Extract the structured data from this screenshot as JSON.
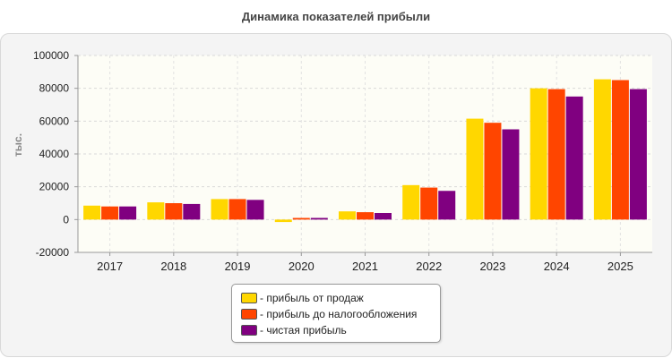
{
  "chart_data": {
    "type": "bar",
    "title": "Динамика показателей прибыли",
    "ylabel": "тыс.",
    "xlabel": "",
    "categories": [
      "2017",
      "2018",
      "2019",
      "2020",
      "2021",
      "2022",
      "2023",
      "2024",
      "2025"
    ],
    "ylim": [
      -20000,
      100000
    ],
    "yticks": [
      100000,
      80000,
      60000,
      40000,
      20000,
      0,
      -20000
    ],
    "grid": true,
    "legend_position": "bottom-center",
    "series": [
      {
        "name": "- прибыль от продаж",
        "color": "#FFD700",
        "values": [
          8500,
          10500,
          12500,
          -1500,
          5000,
          21000,
          61500,
          80000,
          85500
        ]
      },
      {
        "name": "- прибыль до налогообложения",
        "color": "#FF4500",
        "values": [
          8000,
          10000,
          12500,
          1000,
          4500,
          19500,
          59000,
          79500,
          85000
        ]
      },
      {
        "name": "- чистая прибыль",
        "color": "#800080",
        "values": [
          8000,
          9500,
          12000,
          1000,
          4000,
          17500,
          55000,
          75000,
          79500
        ]
      }
    ]
  }
}
